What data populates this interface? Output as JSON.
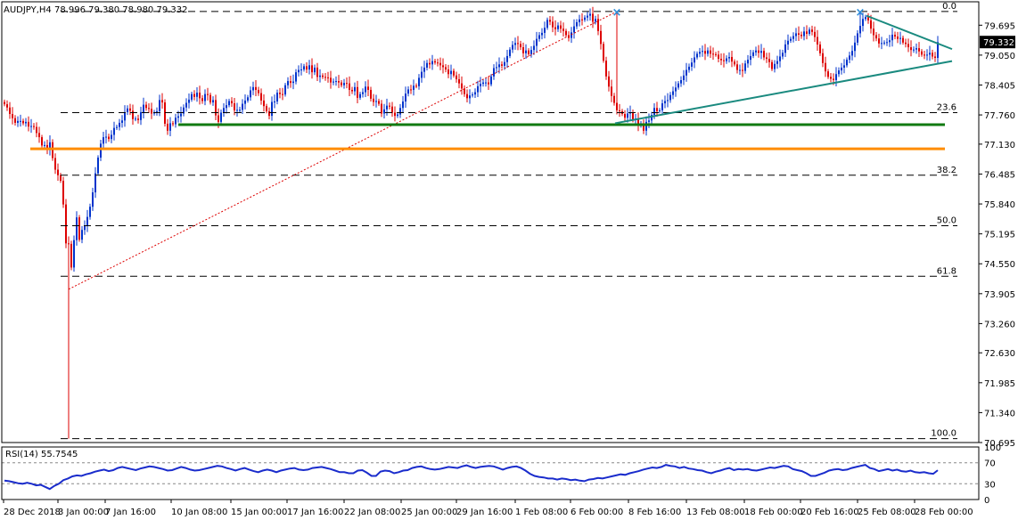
{
  "colors": {
    "background": "#ffffff",
    "frame": "#000000",
    "bull_candle": "#0033cc",
    "bear_candle": "#dd0000",
    "fib_line": "#000000",
    "fib_trend_dotted": "#dd0000",
    "resistance_line": "#2a8bd8",
    "support_green": "#117a11",
    "support_orange": "#ff8c00",
    "trend_teal": "#1a8a7f",
    "marker_x": "#2a8bd8",
    "rsi_line": "#1a2ccc",
    "rsi_level": "#888888",
    "price_tag_bg": "#000000",
    "price_tag_text": "#ffffff"
  },
  "header": {
    "title": "AUDJPY,H4  78.996 79.380 78.980 79.332"
  },
  "rsi": {
    "title": "RSI(14) 55.7545",
    "axis": [
      "100",
      "70",
      "30",
      "0"
    ],
    "levels": [
      70,
      30
    ],
    "values": [
      36,
      35,
      33,
      31,
      30,
      32,
      30,
      27,
      28,
      24,
      20,
      26,
      30,
      37,
      40,
      44,
      46,
      45,
      48,
      50,
      53,
      55,
      57,
      54,
      56,
      60,
      62,
      60,
      58,
      56,
      59,
      61,
      63,
      62,
      60,
      58,
      55,
      56,
      59,
      62,
      60,
      57,
      55,
      56,
      58,
      60,
      62,
      64,
      63,
      60,
      58,
      55,
      58,
      60,
      57,
      54,
      52,
      55,
      57,
      55,
      52,
      55,
      57,
      59,
      60,
      57,
      56,
      57,
      60,
      61,
      62,
      60,
      58,
      55,
      52,
      52,
      50,
      50,
      55,
      56,
      51,
      45,
      45,
      53,
      55,
      54,
      50,
      52,
      55,
      56,
      60,
      62,
      63,
      60,
      58,
      57,
      58,
      60,
      62,
      61,
      60,
      63,
      65,
      62,
      60,
      62,
      63,
      64,
      63,
      60,
      57,
      60,
      62,
      63,
      60,
      55,
      49,
      45,
      43,
      42,
      40,
      40,
      38,
      40,
      39,
      37,
      38,
      36,
      35,
      38,
      39,
      41,
      40,
      42,
      44,
      46,
      48,
      47,
      50,
      52,
      54,
      57,
      59,
      61,
      60,
      62,
      66,
      64,
      63,
      60,
      62,
      59,
      58,
      56,
      55,
      52,
      50,
      53,
      55,
      58,
      60,
      56,
      58,
      57,
      58,
      56,
      55,
      57,
      59,
      61,
      60,
      62,
      64,
      63,
      58,
      56,
      54,
      50,
      45,
      45,
      48,
      51,
      55,
      57,
      58,
      56,
      57,
      60,
      62,
      64,
      66,
      60,
      58,
      54,
      56,
      58,
      55,
      57,
      54,
      53,
      55,
      52,
      51,
      52,
      50,
      49,
      55.8
    ]
  },
  "chart_data": {
    "type": "candlestick",
    "symbol": "AUDJPY",
    "timeframe": "H4",
    "ohlc_header": {
      "open": 78.996,
      "high": 79.38,
      "low": 78.98,
      "close": 79.332
    },
    "last_price": "79.332",
    "ylim": [
      70.695,
      80.2
    ],
    "y_ticks": [
      "79.695",
      "79.050",
      "78.405",
      "77.760",
      "77.130",
      "76.485",
      "75.840",
      "75.195",
      "74.550",
      "73.905",
      "73.260",
      "72.630",
      "71.985",
      "71.340",
      "70.695"
    ],
    "x_ticks": [
      "28 Dec 2018",
      "3 Jan 00:00",
      "7 Jan 16:00",
      "10 Jan 08:00",
      "15 Jan 00:00",
      "17 Jan 16:00",
      "22 Jan 08:00",
      "25 Jan 00:00",
      "29 Jan 16:00",
      "1 Feb 08:00",
      "6 Feb 00:00",
      "8 Feb 16:00",
      "13 Feb 08:00",
      "18 Feb 00:00",
      "20 Feb 16:00",
      "25 Feb 08:00",
      "28 Feb 00:00"
    ],
    "fibonacci": [
      {
        "label": "0.0",
        "value": 79.99
      },
      {
        "label": "23.6",
        "value": 77.81
      },
      {
        "label": "38.2",
        "value": 76.46
      },
      {
        "label": "50.0",
        "value": 75.37
      },
      {
        "label": "61.8",
        "value": 74.28
      },
      {
        "label": "100.0",
        "value": 70.78
      }
    ],
    "support_green": 77.55,
    "support_orange": 77.03,
    "resistance_blue": 79.99,
    "closes": [
      77.99,
      77.92,
      77.78,
      77.69,
      77.59,
      77.63,
      77.63,
      77.58,
      77.61,
      77.51,
      77.52,
      77.5,
      77.37,
      77.28,
      77.1,
      77.11,
      77.02,
      77.17,
      76.83,
      76.58,
      76.46,
      76.34,
      75.83,
      74.99,
      74.98,
      74.47,
      75.06,
      75.55,
      75.07,
      75.28,
      75.37,
      75.56,
      75.78,
      76.09,
      76.5,
      76.84,
      77.14,
      77.28,
      77.29,
      77.24,
      77.33,
      77.48,
      77.5,
      77.59,
      77.64,
      77.82,
      77.9,
      77.85,
      77.67,
      77.68,
      77.65,
      77.82,
      77.98,
      77.91,
      77.89,
      77.79,
      77.82,
      77.84,
      78.08,
      78.03,
      77.57,
      77.42,
      77.58,
      77.56,
      77.7,
      77.73,
      77.79,
      77.92,
      78.02,
      78.09,
      78.21,
      78.15,
      78.24,
      78.12,
      78.06,
      78.21,
      78.19,
      78.03,
      78.08,
      77.75,
      77.61,
      77.81,
      77.91,
      77.97,
      78.06,
      78.01,
      77.86,
      77.87,
      77.87,
      78.0,
      78.07,
      78.14,
      78.29,
      78.36,
      78.3,
      78.23,
      78.07,
      77.95,
      77.84,
      77.74,
      78.04,
      78.05,
      78.24,
      78.21,
      78.2,
      78.4,
      78.49,
      78.45,
      78.48,
      78.68,
      78.73,
      78.74,
      78.81,
      78.74,
      78.83,
      78.68,
      78.78,
      78.58,
      78.61,
      78.58,
      78.57,
      78.56,
      78.46,
      78.48,
      78.49,
      78.46,
      78.4,
      78.45,
      78.44,
      78.3,
      78.27,
      78.36,
      78.13,
      78.21,
      78.25,
      78.37,
      78.3,
      78.11,
      78.04,
      78.06,
      78.0,
      77.79,
      77.88,
      77.96,
      77.94,
      77.81,
      77.74,
      77.77,
      77.91,
      78.05,
      78.22,
      78.31,
      78.3,
      78.39,
      78.38,
      78.56,
      78.69,
      78.78,
      78.88,
      78.85,
      78.92,
      78.89,
      78.88,
      78.83,
      78.79,
      78.74,
      78.64,
      78.71,
      78.61,
      78.53,
      78.44,
      78.33,
      78.21,
      78.12,
      78.18,
      78.2,
      78.25,
      78.38,
      78.43,
      78.46,
      78.46,
      78.42,
      78.59,
      78.77,
      78.79,
      78.85,
      78.82,
      78.9,
      79.03,
      79.17,
      79.27,
      79.31,
      79.29,
      79.22,
      79.09,
      79.15,
      79.07,
      79.16,
      79.25,
      79.4,
      79.48,
      79.53,
      79.64,
      79.81,
      79.77,
      79.65,
      79.61,
      79.69,
      79.62,
      79.57,
      79.48,
      79.42,
      79.54,
      79.67,
      79.76,
      79.82,
      79.81,
      79.86,
      79.9,
      79.94,
      79.77,
      79.83,
      79.57,
      79.29,
      78.93,
      78.59,
      78.37,
      78.17,
      78.02,
      77.86,
      77.84,
      77.78,
      77.7,
      77.79,
      77.81,
      77.66,
      77.68,
      77.53,
      77.58,
      77.42,
      77.61,
      77.64,
      77.76,
      77.91,
      77.84,
      77.86,
      78.01,
      78.06,
      78.08,
      78.19,
      78.27,
      78.35,
      78.44,
      78.51,
      78.61,
      78.73,
      78.8,
      78.89,
      79.0,
      79.08,
      79.12,
      79.14,
      79.08,
      79.15,
      79.08,
      79.07,
      79.06,
      78.97,
      78.94,
      78.92,
      78.98,
      79.01,
      78.91,
      78.85,
      78.73,
      78.73,
      78.71,
      78.87,
      78.95,
      79.03,
      79.11,
      79.15,
      79.1,
      79.14,
      79.0,
      78.97,
      78.9,
      78.75,
      78.86,
      78.92,
      79.02,
      79.1,
      79.28,
      79.36,
      79.4,
      79.46,
      79.52,
      79.49,
      79.46,
      79.56,
      79.51,
      79.6,
      79.55,
      79.44,
      79.28,
      79.09,
      78.88,
      78.7,
      78.58,
      78.54,
      78.51,
      78.64,
      78.72,
      78.78,
      78.83,
      78.95,
      79.04,
      79.14,
      79.32,
      79.52,
      79.68,
      79.83,
      79.87,
      79.8,
      79.62,
      79.48,
      79.41,
      79.3,
      79.31,
      79.32,
      79.33,
      79.37,
      79.49,
      79.45,
      79.4,
      79.42,
      79.32,
      79.29,
      79.22,
      79.16,
      79.17,
      79.2,
      79.13,
      79.06,
      79.04,
      79.06,
      79.1,
      79.02,
      78.99,
      79.33
    ]
  }
}
